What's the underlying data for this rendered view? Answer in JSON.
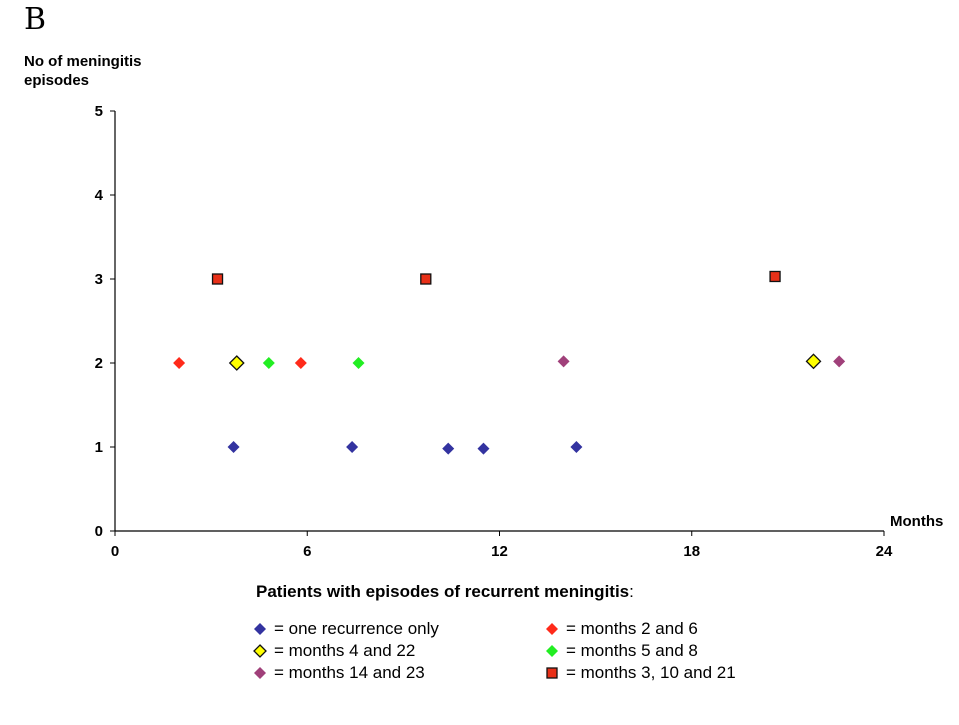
{
  "panel_label": "B",
  "chart_data": {
    "type": "scatter",
    "title": "",
    "ylabel_lines": [
      "No of meningitis",
      "episodes"
    ],
    "xlabel": "Months",
    "xlim": [
      0,
      24
    ],
    "ylim": [
      0,
      5
    ],
    "xticks": [
      0,
      6,
      12,
      18,
      24
    ],
    "yticks": [
      0,
      1,
      2,
      3,
      4,
      5
    ],
    "grid": false,
    "legend_title": "Patients with episodes of recurrent meningitis",
    "legend_title_suffix": ":",
    "series": [
      {
        "name": "= one recurrence only",
        "marker": "diamond",
        "color": "#3333a0",
        "x": [
          3.7,
          7.4,
          10.4,
          11.5,
          14.4
        ],
        "y": [
          1,
          1,
          0.98,
          0.98,
          1
        ]
      },
      {
        "name": "= months 2 and 6",
        "marker": "diamond",
        "color": "#ff2a1a",
        "x": [
          2,
          5.8
        ],
        "y": [
          2,
          2
        ]
      },
      {
        "name": "= months 4 and 22",
        "marker": "diamond-outline",
        "color": "#ffff00",
        "x": [
          3.8,
          21.8
        ],
        "y": [
          2,
          2.02
        ]
      },
      {
        "name": "= months 5 and 8",
        "marker": "diamond",
        "color": "#22ee22",
        "x": [
          4.8,
          7.6
        ],
        "y": [
          2,
          2
        ]
      },
      {
        "name": "= months 14 and 23",
        "marker": "diamond",
        "color": "#a0407a",
        "x": [
          14,
          22.6
        ],
        "y": [
          2.02,
          2.02
        ]
      },
      {
        "name": "= months 3, 10 and 21",
        "marker": "square",
        "color": "#e83018",
        "x": [
          3.2,
          9.7,
          20.6
        ],
        "y": [
          3,
          3,
          3.03
        ]
      }
    ]
  }
}
